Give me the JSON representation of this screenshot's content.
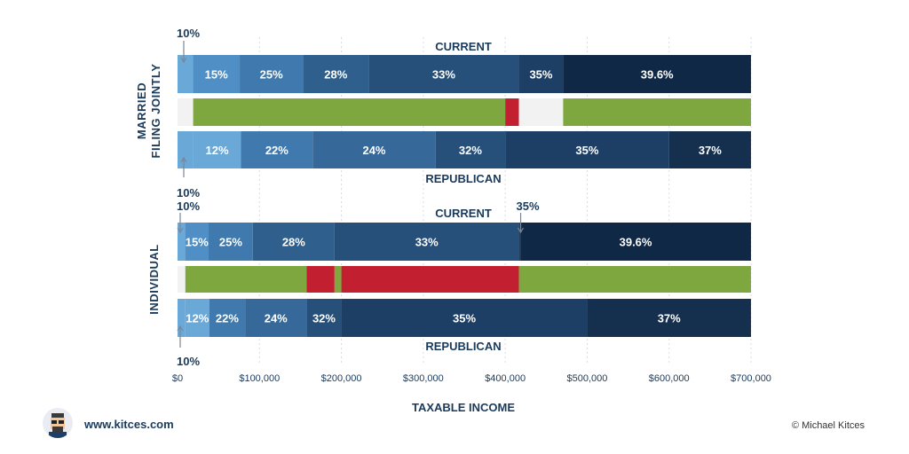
{
  "site_link": "www.kitces.com",
  "copyright": "© Michael Kitces",
  "colors": {
    "10": "#6aa8d8",
    "12": "#6aa8d8",
    "15": "#4f8fc6",
    "22": "#3f79ad",
    "24": "#36699a",
    "25": "#3f79ad",
    "28": "#2f5f8c",
    "32": "#264f7a",
    "33": "#264f7a",
    "35": "#1d3f66",
    "37": "#15304f",
    "39.6": "#0f2845",
    "increase": "#c21f30",
    "decrease": "#7ea83f",
    "none": "#f2f2f2"
  },
  "chart_data": {
    "type": "bar",
    "orientation": "horizontal stacked",
    "xlabel": "TAXABLE INCOME",
    "xlim": [
      0,
      700000
    ],
    "x_ticks": [
      0,
      100000,
      200000,
      300000,
      400000,
      500000,
      600000,
      700000
    ],
    "x_tick_labels": [
      "$0",
      "$100,000",
      "$200,000",
      "$300,000",
      "$400,000",
      "$500,000",
      "$600,000",
      "$700,000"
    ],
    "grid": true,
    "groups": [
      {
        "name": "MARRIED FILING JOINTLY",
        "current": {
          "label": "CURRENT",
          "brackets": [
            {
              "rate": "10%",
              "start": 0,
              "end": 18650
            },
            {
              "rate": "15%",
              "start": 18650,
              "end": 75900
            },
            {
              "rate": "25%",
              "start": 75900,
              "end": 153100
            },
            {
              "rate": "28%",
              "start": 153100,
              "end": 233350
            },
            {
              "rate": "33%",
              "start": 233350,
              "end": 416700
            },
            {
              "rate": "35%",
              "start": 416700,
              "end": 470700
            },
            {
              "rate": "39.6%",
              "start": 470700,
              "end": 700000
            }
          ]
        },
        "change": [
          {
            "type": "none",
            "start": 0,
            "end": 19050
          },
          {
            "type": "decrease",
            "start": 19050,
            "end": 400000
          },
          {
            "type": "increase",
            "start": 400000,
            "end": 416700
          },
          {
            "type": "none",
            "start": 416700,
            "end": 470700
          },
          {
            "type": "decrease",
            "start": 470700,
            "end": 700000
          }
        ],
        "republican": {
          "label": "REPUBLICAN",
          "brackets": [
            {
              "rate": "10%",
              "start": 0,
              "end": 19050
            },
            {
              "rate": "12%",
              "start": 19050,
              "end": 77400
            },
            {
              "rate": "22%",
              "start": 77400,
              "end": 165000
            },
            {
              "rate": "24%",
              "start": 165000,
              "end": 315000
            },
            {
              "rate": "32%",
              "start": 315000,
              "end": 400000
            },
            {
              "rate": "35%",
              "start": 400000,
              "end": 600000
            },
            {
              "rate": "37%",
              "start": 600000,
              "end": 700000
            }
          ]
        }
      },
      {
        "name": "INDIVIDUAL",
        "current": {
          "label": "CURRENT",
          "brackets": [
            {
              "rate": "10%",
              "start": 0,
              "end": 9325
            },
            {
              "rate": "15%",
              "start": 9325,
              "end": 37950
            },
            {
              "rate": "25%",
              "start": 37950,
              "end": 91900
            },
            {
              "rate": "28%",
              "start": 91900,
              "end": 191650
            },
            {
              "rate": "33%",
              "start": 191650,
              "end": 416700
            },
            {
              "rate": "35%",
              "start": 416700,
              "end": 418400
            },
            {
              "rate": "39.6%",
              "start": 418400,
              "end": 700000
            }
          ]
        },
        "change": [
          {
            "type": "none",
            "start": 0,
            "end": 9525
          },
          {
            "type": "decrease",
            "start": 9525,
            "end": 157500
          },
          {
            "type": "increase",
            "start": 157500,
            "end": 191650
          },
          {
            "type": "decrease",
            "start": 191650,
            "end": 200000
          },
          {
            "type": "increase",
            "start": 200000,
            "end": 416700
          },
          {
            "type": "decrease",
            "start": 416700,
            "end": 700000
          }
        ],
        "republican": {
          "label": "REPUBLICAN",
          "brackets": [
            {
              "rate": "10%",
              "start": 0,
              "end": 9525
            },
            {
              "rate": "12%",
              "start": 9525,
              "end": 38700
            },
            {
              "rate": "22%",
              "start": 38700,
              "end": 82500
            },
            {
              "rate": "24%",
              "start": 82500,
              "end": 157500
            },
            {
              "rate": "32%",
              "start": 157500,
              "end": 200000
            },
            {
              "rate": "35%",
              "start": 200000,
              "end": 500000
            },
            {
              "rate": "37%",
              "start": 500000,
              "end": 700000
            }
          ]
        }
      }
    ]
  }
}
